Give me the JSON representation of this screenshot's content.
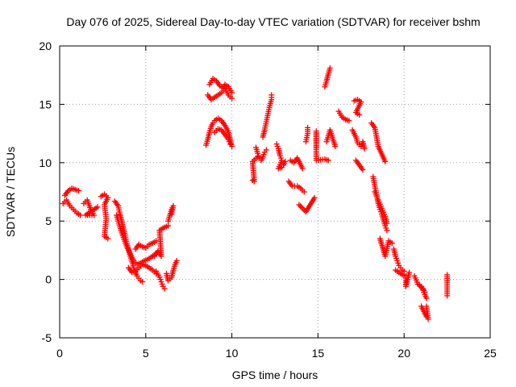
{
  "chart_data": {
    "type": "scatter",
    "title": "Day 076 of 2025, Sidereal Day-to-day VTEC variation (SDTVAR) for receiver bshm",
    "xlabel": "GPS time / hours",
    "ylabel": "SDTVAR / TECUs",
    "xlim": [
      0,
      25
    ],
    "ylim": [
      -5,
      20
    ],
    "xticks": [
      0,
      5,
      10,
      15,
      20,
      25
    ],
    "yticks": [
      -5,
      0,
      5,
      10,
      15,
      20
    ],
    "xtick_labels": [
      "0",
      "5",
      "10",
      "15",
      "20",
      "25"
    ],
    "ytick_labels": [
      "-5",
      "0",
      "5",
      "10",
      "15",
      "20"
    ],
    "grid": true,
    "marker": "+",
    "color": "#ff0000",
    "series": [
      {
        "name": "SDTVAR",
        "segments": [
          [
            [
              0.2,
              6.5
            ],
            [
              0.4,
              6.8
            ],
            [
              0.6,
              6.3
            ],
            [
              0.8,
              6.0
            ],
            [
              1.0,
              5.7
            ],
            [
              1.2,
              5.5
            ]
          ],
          [
            [
              0.3,
              7.2
            ],
            [
              0.5,
              7.6
            ],
            [
              0.7,
              7.8
            ],
            [
              0.9,
              7.7
            ],
            [
              1.1,
              7.6
            ]
          ],
          [
            [
              1.4,
              6.5
            ],
            [
              1.6,
              6.8
            ],
            [
              1.8,
              6.0
            ],
            [
              2.0,
              5.5
            ],
            [
              1.5,
              5.5
            ],
            [
              2.2,
              6.2
            ]
          ],
          [
            [
              2.4,
              7.1
            ],
            [
              2.6,
              7.3
            ],
            [
              2.8,
              7.0
            ],
            [
              2.6,
              6.4
            ],
            [
              2.7,
              5.2
            ],
            [
              2.6,
              3.7
            ],
            [
              2.8,
              3.5
            ]
          ],
          [
            [
              3.2,
              6.7
            ],
            [
              3.4,
              6.3
            ],
            [
              3.5,
              5.6
            ],
            [
              3.6,
              5.0
            ],
            [
              3.7,
              4.4
            ],
            [
              3.8,
              3.8
            ],
            [
              3.9,
              3.1
            ],
            [
              4.0,
              2.6
            ],
            [
              4.1,
              2.0
            ],
            [
              4.2,
              1.5
            ],
            [
              4.3,
              1.0
            ],
            [
              4.4,
              0.6
            ],
            [
              4.5,
              0.3
            ],
            [
              4.6,
              0.1
            ],
            [
              4.7,
              -0.1
            ],
            [
              4.8,
              -0.2
            ]
          ],
          [
            [
              3.3,
              5.5
            ],
            [
              3.5,
              4.5
            ],
            [
              3.7,
              3.6
            ],
            [
              3.9,
              2.8
            ],
            [
              4.1,
              2.2
            ],
            [
              4.3,
              1.6
            ],
            [
              4.5,
              1.3
            ],
            [
              4.7,
              1.4
            ],
            [
              4.9,
              1.6
            ],
            [
              5.1,
              1.7
            ],
            [
              5.3,
              1.9
            ],
            [
              5.5,
              2.1
            ],
            [
              5.7,
              2.4
            ]
          ],
          [
            [
              4.0,
              1.0
            ],
            [
              4.2,
              0.6
            ],
            [
              4.4,
              0.7
            ],
            [
              4.6,
              1.0
            ],
            [
              4.8,
              1.3
            ],
            [
              5.0,
              1.2
            ],
            [
              5.2,
              1.0
            ],
            [
              5.4,
              0.8
            ],
            [
              5.6,
              0.5
            ]
          ],
          [
            [
              4.4,
              2.6
            ],
            [
              4.6,
              3.0
            ],
            [
              4.8,
              2.8
            ],
            [
              5.0,
              2.7
            ],
            [
              5.2,
              3.0
            ],
            [
              5.4,
              3.1
            ],
            [
              5.6,
              3.3
            ]
          ],
          [
            [
              5.6,
              0.7
            ],
            [
              5.8,
              0.2
            ],
            [
              5.9,
              -0.2
            ],
            [
              6.0,
              -0.6
            ],
            [
              6.1,
              -0.8
            ]
          ],
          [
            [
              5.5,
              2.0
            ],
            [
              5.7,
              2.4
            ],
            [
              5.9,
              2.0
            ],
            [
              5.8,
              4.2
            ],
            [
              6.0,
              4.4
            ],
            [
              6.3,
              4.6
            ]
          ],
          [
            [
              6.2,
              0.5
            ],
            [
              6.3,
              -0.1
            ],
            [
              6.5,
              0.2
            ],
            [
              6.6,
              0.8
            ],
            [
              6.7,
              1.3
            ],
            [
              6.8,
              1.6
            ]
          ],
          [
            [
              6.3,
              5.0
            ],
            [
              6.4,
              5.5
            ],
            [
              6.5,
              6.0
            ],
            [
              6.6,
              6.3
            ],
            [
              6.5,
              5.6
            ]
          ],
          [
            [
              8.5,
              11.5
            ],
            [
              8.6,
              12.0
            ],
            [
              8.7,
              12.6
            ],
            [
              8.8,
              13.1
            ],
            [
              8.9,
              13.4
            ],
            [
              9.0,
              13.6
            ],
            [
              9.2,
              13.8
            ],
            [
              9.4,
              13.6
            ],
            [
              9.6,
              13.2
            ],
            [
              9.8,
              12.6
            ],
            [
              9.9,
              12.0
            ],
            [
              10.0,
              11.4
            ]
          ],
          [
            [
              9.0,
              12.6
            ],
            [
              9.2,
              12.9
            ],
            [
              9.4,
              12.8
            ],
            [
              9.6,
              12.4
            ],
            [
              9.8,
              12.0
            ],
            [
              9.9,
              11.6
            ]
          ],
          [
            [
              8.7,
              16.7
            ],
            [
              8.9,
              17.2
            ],
            [
              9.1,
              17.0
            ],
            [
              9.3,
              16.6
            ],
            [
              9.5,
              16.4
            ],
            [
              9.6,
              16.7
            ],
            [
              9.8,
              16.5
            ],
            [
              10.0,
              16.0
            ]
          ],
          [
            [
              8.6,
              15.8
            ],
            [
              8.8,
              15.4
            ],
            [
              9.0,
              15.6
            ],
            [
              9.2,
              15.8
            ],
            [
              9.4,
              16.0
            ],
            [
              9.6,
              16.3
            ],
            [
              9.8,
              15.8
            ],
            [
              10.0,
              15.5
            ]
          ],
          [
            [
              11.2,
              8.5
            ],
            [
              11.3,
              8.4
            ],
            [
              11.2,
              10.1
            ],
            [
              11.5,
              10.5
            ]
          ],
          [
            [
              11.4,
              11.3
            ],
            [
              11.5,
              10.8
            ],
            [
              11.6,
              10.4
            ],
            [
              11.7,
              10.2
            ],
            [
              11.8,
              10.5
            ],
            [
              11.9,
              10.9
            ],
            [
              12.0,
              11.1
            ]
          ],
          [
            [
              11.8,
              12.2
            ],
            [
              11.9,
              12.8
            ],
            [
              12.0,
              13.5
            ],
            [
              12.1,
              14.2
            ],
            [
              12.2,
              14.9
            ],
            [
              12.3,
              15.4
            ],
            [
              12.3,
              15.8
            ]
          ],
          [
            [
              12.6,
              11.6
            ],
            [
              12.7,
              11.2
            ],
            [
              12.8,
              10.6
            ],
            [
              12.9,
              10.2
            ],
            [
              12.7,
              9.5
            ],
            [
              12.9,
              9.6
            ],
            [
              13.0,
              9.8
            ],
            [
              13.1,
              10.1
            ]
          ],
          [
            [
              13.3,
              8.4
            ],
            [
              13.5,
              8.0
            ],
            [
              13.8,
              8.0
            ],
            [
              14.0,
              7.8
            ],
            [
              14.2,
              7.5
            ]
          ],
          [
            [
              13.4,
              10.2
            ],
            [
              13.6,
              10.0
            ],
            [
              13.8,
              10.4
            ],
            [
              14.1,
              9.5
            ]
          ],
          [
            [
              13.9,
              6.4
            ],
            [
              14.3,
              5.8
            ],
            [
              14.8,
              7.0
            ]
          ],
          [
            [
              14.3,
              11.8
            ],
            [
              14.4,
              12.5
            ],
            [
              14.4,
              13.0
            ]
          ],
          [
            [
              14.9,
              11.3
            ],
            [
              14.9,
              12.7
            ],
            [
              14.9,
              10.2
            ],
            [
              15.4,
              10.3
            ],
            [
              15.6,
              10.2
            ]
          ],
          [
            [
              15.5,
              11.8
            ],
            [
              15.7,
              12.8
            ],
            [
              16.0,
              11.4
            ]
          ],
          [
            [
              15.4,
              16.5
            ],
            [
              15.5,
              17.0
            ],
            [
              15.6,
              17.6
            ],
            [
              15.7,
              18.1
            ]
          ],
          [
            [
              16.2,
              14.4
            ],
            [
              16.4,
              13.9
            ],
            [
              16.6,
              13.7
            ],
            [
              16.8,
              13.6
            ]
          ],
          [
            [
              17.1,
              15.3
            ],
            [
              17.3,
              15.4
            ],
            [
              17.5,
              15.2
            ],
            [
              17.2,
              14.3
            ],
            [
              17.4,
              14.1
            ]
          ],
          [
            [
              17.0,
              12.8
            ],
            [
              17.2,
              12.2
            ],
            [
              17.3,
              11.7
            ],
            [
              17.5,
              11.4
            ],
            [
              17.6,
              11.8
            ],
            [
              17.7,
              11.2
            ]
          ],
          [
            [
              17.2,
              10.2
            ],
            [
              17.4,
              9.8
            ],
            [
              17.6,
              9.4
            ]
          ],
          [
            [
              18.1,
              13.4
            ],
            [
              18.3,
              13.0
            ],
            [
              18.5,
              11.4
            ],
            [
              18.9,
              10.1
            ]
          ],
          [
            [
              18.2,
              8.8
            ],
            [
              18.3,
              8.0
            ],
            [
              18.4,
              7.3
            ],
            [
              18.5,
              6.5
            ],
            [
              18.6,
              6.0
            ],
            [
              18.7,
              5.6
            ],
            [
              18.8,
              5.1
            ],
            [
              18.9,
              4.6
            ],
            [
              19.0,
              4.2
            ]
          ],
          [
            [
              18.3,
              7.5
            ],
            [
              18.5,
              6.8
            ],
            [
              18.7,
              6.1
            ],
            [
              18.9,
              5.4
            ],
            [
              19.0,
              4.8
            ]
          ],
          [
            [
              18.6,
              3.5
            ],
            [
              18.9,
              2.0
            ],
            [
              19.1,
              3.3
            ],
            [
              19.3,
              3.1
            ]
          ],
          [
            [
              19.4,
              2.6
            ],
            [
              19.5,
              2.0
            ],
            [
              19.6,
              1.6
            ],
            [
              19.7,
              1.2
            ],
            [
              19.8,
              1.0
            ],
            [
              19.9,
              0.8
            ],
            [
              20.0,
              0.7
            ]
          ],
          [
            [
              19.5,
              0.8
            ],
            [
              19.7,
              0.6
            ],
            [
              19.9,
              0.4
            ],
            [
              20.1,
              0.3
            ],
            [
              20.1,
              -0.6
            ],
            [
              20.3,
              0.6
            ]
          ],
          [
            [
              20.6,
              0.3
            ],
            [
              20.8,
              -0.4
            ],
            [
              21.0,
              -0.6
            ],
            [
              21.1,
              -0.9
            ],
            [
              21.2,
              -1.3
            ],
            [
              21.3,
              -1.6
            ]
          ],
          [
            [
              21.0,
              -2.3
            ],
            [
              21.1,
              -2.6
            ],
            [
              21.2,
              -2.9
            ],
            [
              21.3,
              -3.2
            ],
            [
              21.4,
              -3.4
            ],
            [
              21.3,
              -2.3
            ]
          ],
          [
            [
              20.9,
              -0.5
            ],
            [
              21.1,
              -0.8
            ],
            [
              21.2,
              -1.1
            ]
          ],
          [
            [
              22.5,
              0.4
            ],
            [
              22.5,
              -0.4
            ],
            [
              22.5,
              -1.4
            ]
          ]
        ]
      }
    ]
  }
}
